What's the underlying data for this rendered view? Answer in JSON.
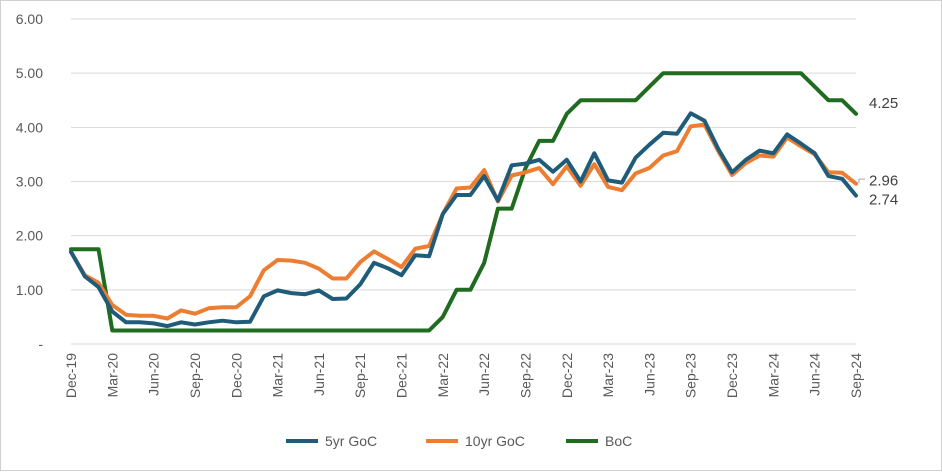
{
  "chart_data": {
    "type": "line",
    "title": "",
    "xlabel": "",
    "ylabel": "",
    "ylim": [
      0,
      6
    ],
    "yticks": [
      "-",
      "1.00",
      "2.00",
      "3.00",
      "4.00",
      "5.00",
      "6.00"
    ],
    "grid": "horizontal",
    "legend": "bottom",
    "x_tick_labels": [
      "Dec-19",
      "Mar-20",
      "Jun-20",
      "Sep-20",
      "Dec-20",
      "Mar-21",
      "Jun-21",
      "Sep-21",
      "Dec-21",
      "Mar-22",
      "Jun-22",
      "Sep-22",
      "Dec-22",
      "Mar-23",
      "Jun-23",
      "Sep-23",
      "Dec-23",
      "Mar-24",
      "Jun-24",
      "Sep-24"
    ],
    "x": [
      "Dec-19",
      "Jan-20",
      "Feb-20",
      "Mar-20",
      "Apr-20",
      "May-20",
      "Jun-20",
      "Jul-20",
      "Aug-20",
      "Sep-20",
      "Oct-20",
      "Nov-20",
      "Dec-20",
      "Jan-21",
      "Feb-21",
      "Mar-21",
      "Apr-21",
      "May-21",
      "Jun-21",
      "Jul-21",
      "Aug-21",
      "Sep-21",
      "Oct-21",
      "Nov-21",
      "Dec-21",
      "Jan-22",
      "Feb-22",
      "Mar-22",
      "Apr-22",
      "May-22",
      "Jun-22",
      "Jul-22",
      "Aug-22",
      "Sep-22",
      "Oct-22",
      "Nov-22",
      "Dec-22",
      "Jan-23",
      "Feb-23",
      "Mar-23",
      "Apr-23",
      "May-23",
      "Jun-23",
      "Jul-23",
      "Aug-23",
      "Sep-23",
      "Oct-23",
      "Nov-23",
      "Dec-23",
      "Jan-24",
      "Feb-24",
      "Mar-24",
      "Apr-24",
      "May-24",
      "Jun-24",
      "Jul-24",
      "Aug-24",
      "Sep-24"
    ],
    "series": [
      {
        "name": "5yr GoC",
        "color": "#1f5c7a",
        "values": [
          1.7,
          1.25,
          1.05,
          0.6,
          0.4,
          0.4,
          0.38,
          0.33,
          0.4,
          0.36,
          0.4,
          0.43,
          0.4,
          0.41,
          0.88,
          0.99,
          0.94,
          0.92,
          0.99,
          0.83,
          0.84,
          1.1,
          1.5,
          1.4,
          1.27,
          1.64,
          1.62,
          2.4,
          2.75,
          2.75,
          3.1,
          2.65,
          3.3,
          3.33,
          3.4,
          3.18,
          3.4,
          3.0,
          3.52,
          3.02,
          2.98,
          3.44,
          3.68,
          3.9,
          3.88,
          4.26,
          4.12,
          3.6,
          3.17,
          3.4,
          3.57,
          3.52,
          3.87,
          3.7,
          3.52,
          3.1,
          3.05,
          2.74
        ]
      },
      {
        "name": "10yr GoC",
        "color": "#ed7d31",
        "values": [
          1.7,
          1.27,
          1.13,
          0.72,
          0.54,
          0.52,
          0.52,
          0.47,
          0.62,
          0.56,
          0.66,
          0.68,
          0.68,
          0.88,
          1.36,
          1.55,
          1.54,
          1.5,
          1.39,
          1.21,
          1.21,
          1.51,
          1.71,
          1.57,
          1.42,
          1.76,
          1.81,
          2.4,
          2.87,
          2.89,
          3.21,
          2.63,
          3.11,
          3.17,
          3.25,
          2.95,
          3.28,
          2.92,
          3.32,
          2.9,
          2.84,
          3.15,
          3.25,
          3.48,
          3.56,
          4.02,
          4.05,
          3.56,
          3.12,
          3.34,
          3.48,
          3.46,
          3.81,
          3.65,
          3.5,
          3.17,
          3.16,
          2.96
        ]
      },
      {
        "name": "BoC",
        "color": "#1f6b1f",
        "values": [
          1.75,
          1.75,
          1.75,
          0.25,
          0.25,
          0.25,
          0.25,
          0.25,
          0.25,
          0.25,
          0.25,
          0.25,
          0.25,
          0.25,
          0.25,
          0.25,
          0.25,
          0.25,
          0.25,
          0.25,
          0.25,
          0.25,
          0.25,
          0.25,
          0.25,
          0.25,
          0.25,
          0.5,
          1.0,
          1.0,
          1.5,
          2.5,
          2.5,
          3.25,
          3.75,
          3.75,
          4.25,
          4.5,
          4.5,
          4.5,
          4.5,
          4.5,
          4.75,
          5.0,
          5.0,
          5.0,
          5.0,
          5.0,
          5.0,
          5.0,
          5.0,
          5.0,
          5.0,
          5.0,
          4.75,
          4.5,
          4.5,
          4.25
        ]
      }
    ],
    "end_labels": [
      "4.25",
      "2.96",
      "2.74"
    ]
  }
}
